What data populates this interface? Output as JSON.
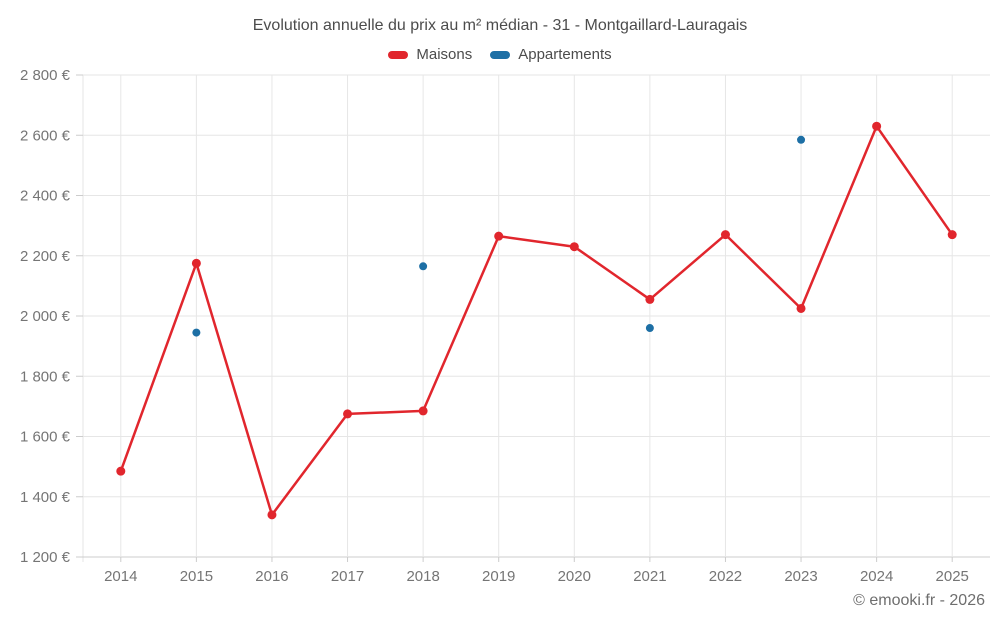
{
  "title": "Evolution annuelle du prix au m² médian - 31 - Montgaillard-Lauragais",
  "legend": [
    {
      "label": "Maisons",
      "color": "#e1262d"
    },
    {
      "label": "Appartements",
      "color": "#1d6fa5"
    }
  ],
  "footer": "© emooki.fr - 2026",
  "chart_data": {
    "type": "line",
    "title": "Evolution annuelle du prix au m² médian - 31 - Montgaillard-Lauragais",
    "categories": [
      "2014",
      "2015",
      "2016",
      "2017",
      "2018",
      "2019",
      "2020",
      "2021",
      "2022",
      "2023",
      "2024",
      "2025"
    ],
    "series": [
      {
        "name": "Maisons",
        "type": "line",
        "color": "#e1262d",
        "marker_radius": 4.5,
        "line_width": 2.5,
        "values": [
          1485,
          2175,
          1340,
          1675,
          1685,
          2265,
          2230,
          2055,
          2270,
          2025,
          2630,
          2270
        ]
      },
      {
        "name": "Appartements",
        "type": "scatter",
        "color": "#1d6fa5",
        "marker_radius": 4,
        "values": [
          null,
          1945,
          null,
          null,
          2165,
          null,
          null,
          1960,
          null,
          2585,
          null,
          null
        ]
      }
    ],
    "xlabel": "",
    "ylabel": "",
    "yunit": "€",
    "ylim": [
      1200,
      2800
    ],
    "ytick_step": 200,
    "ytick_labels": [
      "1 200 €",
      "1 400 €",
      "1 600 €",
      "1 800 €",
      "2 000 €",
      "2 200 €",
      "2 400 €",
      "2 600 €",
      "2 800 €"
    ],
    "grid": true,
    "legend_position": "top",
    "colors": {
      "grid": "#e6e6e6",
      "axis": "#cccccc",
      "axis_labels": "#757575",
      "title": "#4c4c4c",
      "footer": "#6e6e6e"
    },
    "font_sizes": {
      "axis_labels": 15
    }
  }
}
